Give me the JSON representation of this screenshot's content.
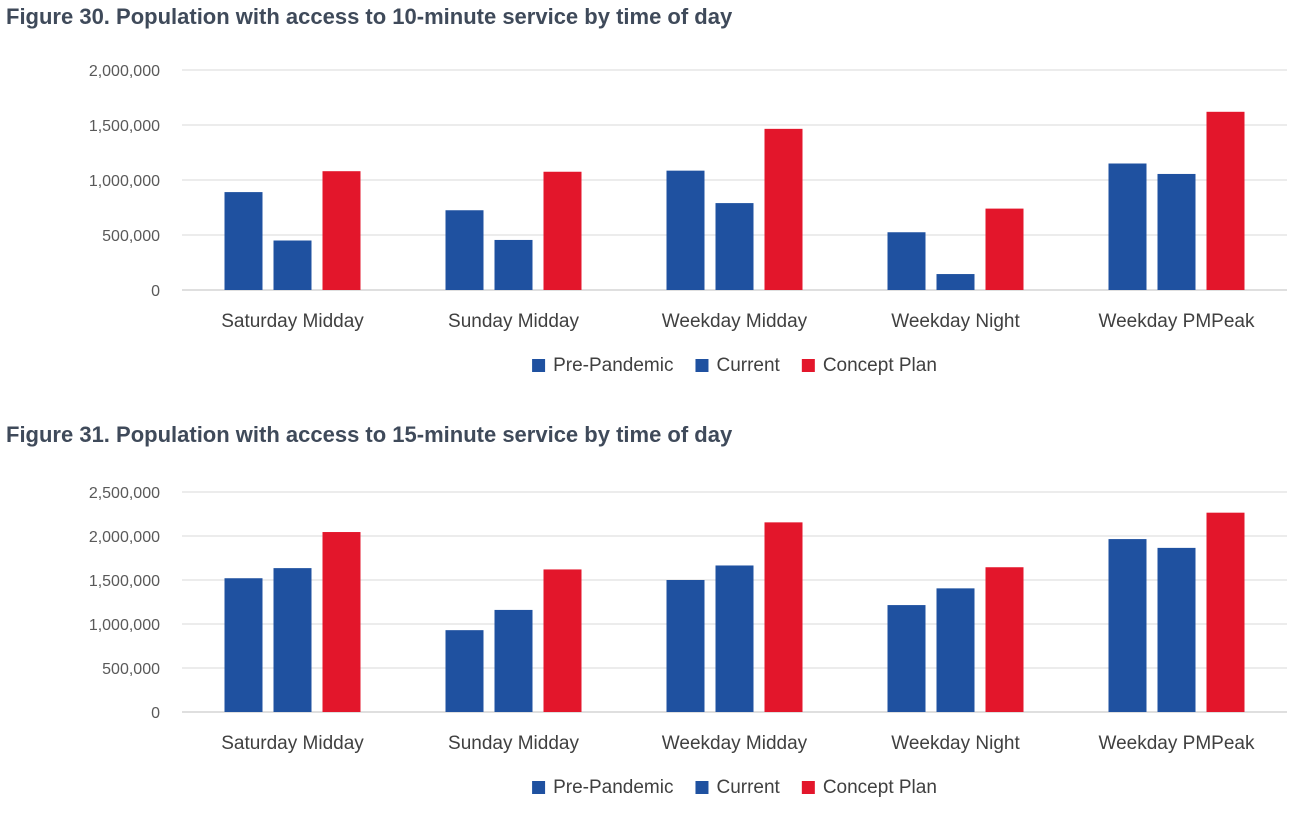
{
  "chart_data": [
    {
      "type": "bar",
      "title": "Figure 30. Population with access to 10-minute service by time of day",
      "categories": [
        "Saturday Midday",
        "Sunday Midday",
        "Weekday Midday",
        "Weekday Night",
        "Weekday PMPeak"
      ],
      "series": [
        {
          "name": "Pre-Pandemic",
          "color": "#1f51a0",
          "values": [
            890000,
            725000,
            1085000,
            525000,
            1150000
          ]
        },
        {
          "name": "Current",
          "color": "#1f51a0",
          "values": [
            450000,
            455000,
            790000,
            145000,
            1055000
          ]
        },
        {
          "name": "Concept Plan",
          "color": "#e3162b",
          "values": [
            1080000,
            1075000,
            1465000,
            740000,
            1620000
          ]
        }
      ],
      "ylim": [
        0,
        2000000
      ],
      "yticks": [
        0,
        500000,
        1000000,
        1500000,
        2000000
      ],
      "ytick_labels": [
        "0",
        "500,000",
        "1,000,000",
        "1,500,000",
        "2,000,000"
      ],
      "grid": true,
      "legend_position": "bottom"
    },
    {
      "type": "bar",
      "title": "Figure 31. Population with access to 15-minute service by time of day",
      "categories": [
        "Saturday Midday",
        "Sunday Midday",
        "Weekday Midday",
        "Weekday Night",
        "Weekday PMPeak"
      ],
      "series": [
        {
          "name": "Pre-Pandemic",
          "color": "#1f51a0",
          "values": [
            1520000,
            930000,
            1500000,
            1215000,
            1965000
          ]
        },
        {
          "name": "Current",
          "color": "#1f51a0",
          "values": [
            1635000,
            1160000,
            1665000,
            1405000,
            1865000
          ]
        },
        {
          "name": "Concept Plan",
          "color": "#e3162b",
          "values": [
            2045000,
            1620000,
            2155000,
            1645000,
            2265000
          ]
        }
      ],
      "ylim": [
        0,
        2500000
      ],
      "yticks": [
        0,
        500000,
        1000000,
        1500000,
        2000000,
        2500000
      ],
      "ytick_labels": [
        "0",
        "500,000",
        "1,000,000",
        "1,500,000",
        "2,000,000",
        "2,500,000"
      ],
      "grid": true,
      "legend_position": "bottom"
    }
  ]
}
